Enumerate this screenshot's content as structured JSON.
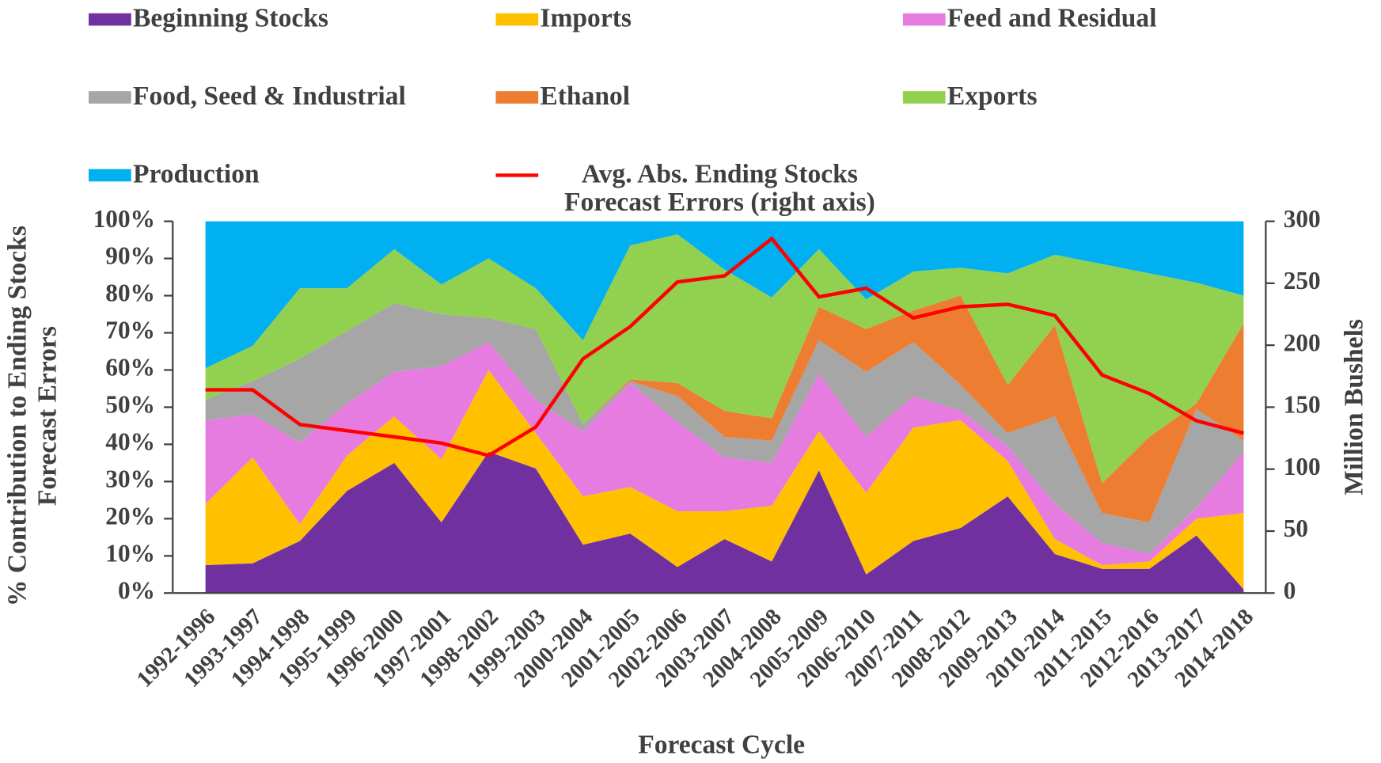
{
  "chart_data": {
    "type": "stacked-area-line",
    "x_label": "Forecast Cycle",
    "y_label": "% Contribution to Ending Stocks Forecast Errors",
    "y2_label": "Million Bushels",
    "categories": [
      "1992-1996",
      "1993-1997",
      "1994-1998",
      "1995-1999",
      "1996-2000",
      "1997-2001",
      "1998-2002",
      "1999-2003",
      "2000-2004",
      "2001-2005",
      "2002-2006",
      "2003-2007",
      "2004-2008",
      "2005-2009",
      "2006-2010",
      "2007-2011",
      "2008-2012",
      "2009-2013",
      "2010-2014",
      "2011-2015",
      "2012-2016",
      "2013-2017",
      "2014-2018"
    ],
    "ylim": [
      0,
      100
    ],
    "yticks": [
      {
        "value": 0,
        "label": "0%"
      },
      {
        "value": 10,
        "label": "10%"
      },
      {
        "value": 20,
        "label": "20%"
      },
      {
        "value": 30,
        "label": "30%"
      },
      {
        "value": 40,
        "label": "40%"
      },
      {
        "value": 50,
        "label": "50%"
      },
      {
        "value": 60,
        "label": "60%"
      },
      {
        "value": 70,
        "label": "70%"
      },
      {
        "value": 80,
        "label": "80%"
      },
      {
        "value": 90,
        "label": "90%"
      },
      {
        "value": 100,
        "label": "100%"
      }
    ],
    "y2lim": [
      0,
      300
    ],
    "y2ticks": [
      0,
      50,
      100,
      150,
      200,
      250,
      300
    ],
    "series": [
      {
        "name": "Beginning Stocks",
        "color": "#7030a0",
        "values": [
          7.5,
          8,
          14,
          27.5,
          35,
          19,
          38,
          33.5,
          13,
          16,
          7,
          14.5,
          8.5,
          33,
          5,
          14,
          17.5,
          26,
          10.5,
          6.5,
          6.5,
          15.5,
          1
        ]
      },
      {
        "name": "Imports",
        "color": "#ffc000",
        "values": [
          16.5,
          28.5,
          4.5,
          9.5,
          12.5,
          17,
          22,
          9.5,
          13,
          12.5,
          15,
          7.5,
          15,
          10.5,
          22,
          30.5,
          29,
          9.5,
          4,
          1,
          2,
          4.5,
          20.5
        ]
      },
      {
        "name": "Feed and Residual",
        "color": "#e67ce0",
        "values": [
          22.5,
          11.5,
          22,
          14,
          12,
          25,
          7.5,
          9,
          17.5,
          28,
          24,
          14.5,
          11.5,
          15.5,
          15,
          8.5,
          2.5,
          4,
          9.5,
          6,
          2,
          3,
          16.5
        ]
      },
      {
        "name": "Food, Seed & Industrial",
        "color": "#a6a6a6",
        "values": [
          5.5,
          9,
          22.5,
          19.5,
          18.5,
          14,
          6.5,
          19,
          2,
          0.5,
          7,
          5.5,
          6,
          9,
          17.5,
          14.5,
          7,
          3.5,
          23.5,
          8,
          8.5,
          26.5,
          3
        ]
      },
      {
        "name": "Ethanol",
        "color": "#ed7d31",
        "values": [
          0,
          0,
          0,
          0,
          0,
          0,
          0,
          0,
          0,
          0.5,
          3.5,
          7,
          6,
          9,
          11.5,
          8.5,
          24,
          13,
          24.5,
          8,
          23,
          1.5,
          31.5
        ]
      },
      {
        "name": "Exports",
        "color": "#92d050",
        "values": [
          8.5,
          9.5,
          19,
          11.5,
          14.5,
          8,
          16,
          11,
          22.5,
          36,
          40,
          38,
          32.5,
          15.5,
          8,
          10.5,
          7.5,
          30,
          19,
          59,
          44,
          32.5,
          7.5
        ]
      },
      {
        "name": "Production",
        "color": "#00b0f0",
        "values": [
          39.5,
          33.5,
          18,
          18,
          7.5,
          17,
          10,
          18,
          32,
          6.5,
          3.5,
          13,
          20.5,
          7.5,
          21,
          13.5,
          12.5,
          14,
          9,
          11.5,
          14,
          16.5,
          20
        ]
      },
      {
        "name": "Avg. Abs. Ending Stocks Forecast Errors (right axis)",
        "color": "#ff0000",
        "axis": "y2",
        "values": [
          164,
          164,
          136,
          131,
          126,
          121,
          111,
          134,
          189,
          215,
          251,
          256,
          286,
          239,
          246,
          222,
          231,
          233,
          224,
          176,
          161,
          139,
          129
        ]
      }
    ]
  }
}
